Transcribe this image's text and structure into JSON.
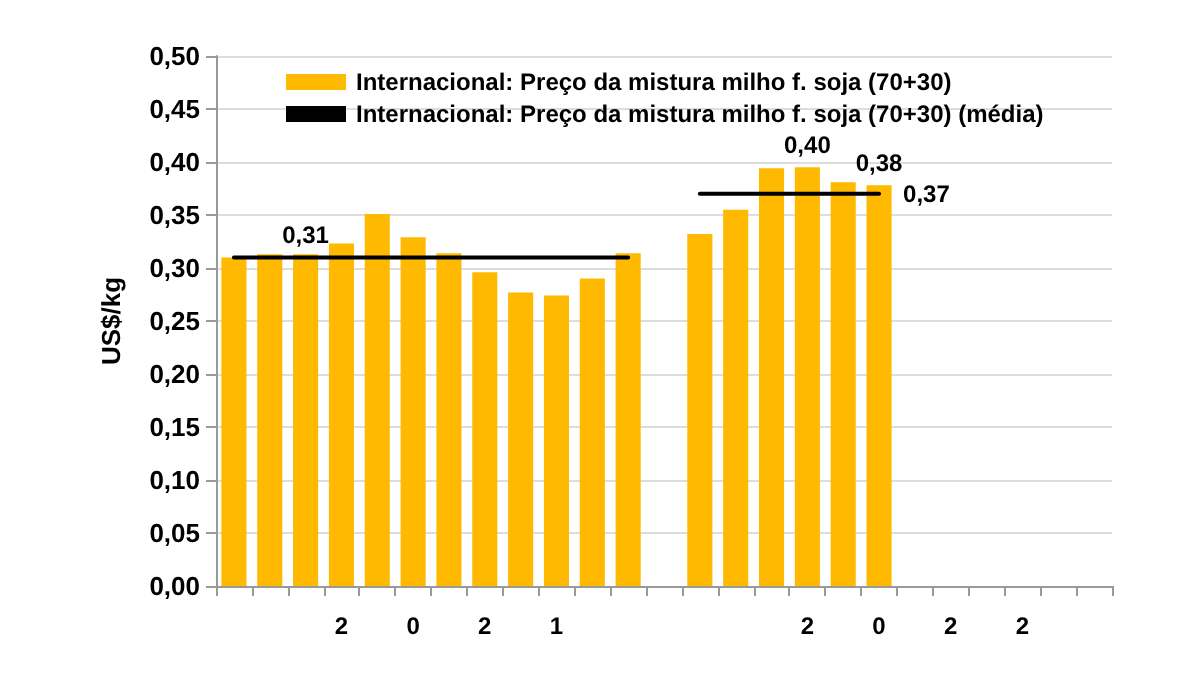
{
  "chart_data": {
    "type": "bar",
    "ylabel": "US$/kg",
    "categories": [
      null,
      null,
      null,
      "2",
      null,
      "0",
      null,
      "2",
      null,
      "1",
      null,
      null,
      null,
      null,
      null,
      null,
      "2",
      null,
      "0",
      null,
      "2",
      null,
      "2",
      null,
      null
    ],
    "series": [
      {
        "name": "Internacional: Preço da mistura milho f. soja (70+30)",
        "color": "#ffb900",
        "values": [
          0.31,
          0.313,
          0.313,
          0.323,
          0.351,
          0.329,
          0.314,
          0.296,
          0.277,
          0.274,
          0.29,
          0.314,
          null,
          0.332,
          0.355,
          0.394,
          0.395,
          0.381,
          0.378,
          null,
          null,
          null,
          null,
          null,
          null
        ],
        "value_labels": [
          null,
          null,
          null,
          null,
          null,
          null,
          null,
          null,
          null,
          null,
          null,
          null,
          null,
          null,
          null,
          null,
          "0,40",
          null,
          "0,38",
          null,
          null,
          null,
          null,
          null,
          null
        ]
      },
      {
        "name": "Internacional: Preço da mistura milho f. soja (70+30) (média)",
        "type": "line",
        "color": "#000000",
        "marker": "none",
        "line_style": "solid",
        "values": [
          0.31,
          0.31,
          0.31,
          0.31,
          0.31,
          0.31,
          0.31,
          0.31,
          0.31,
          0.31,
          0.31,
          0.31,
          null,
          0.37,
          0.37,
          0.37,
          0.37,
          0.37,
          0.37,
          null,
          null,
          null,
          null,
          null,
          null
        ],
        "value_labels": [
          null,
          null,
          "0,31",
          null,
          null,
          null,
          null,
          null,
          null,
          null,
          null,
          null,
          null,
          null,
          null,
          null,
          null,
          null,
          "0,37",
          null,
          null,
          null,
          null,
          null,
          null
        ]
      }
    ],
    "ylim": [
      0,
      0.5
    ],
    "yticks": [
      {
        "value": 0,
        "label": "0,00"
      },
      {
        "value": 0.05,
        "label": "0,05"
      },
      {
        "value": 0.1,
        "label": "0,10"
      },
      {
        "value": 0.15,
        "label": "0,15"
      },
      {
        "value": 0.2,
        "label": "0,20"
      },
      {
        "value": 0.25,
        "label": "0,25"
      },
      {
        "value": 0.3,
        "label": "0,30"
      },
      {
        "value": 0.35,
        "label": "0,35"
      },
      {
        "value": 0.4,
        "label": "0,40"
      },
      {
        "value": 0.45,
        "label": "0,45"
      },
      {
        "value": 0.5,
        "label": "0,50"
      }
    ],
    "grid": "y",
    "legend": "top"
  }
}
